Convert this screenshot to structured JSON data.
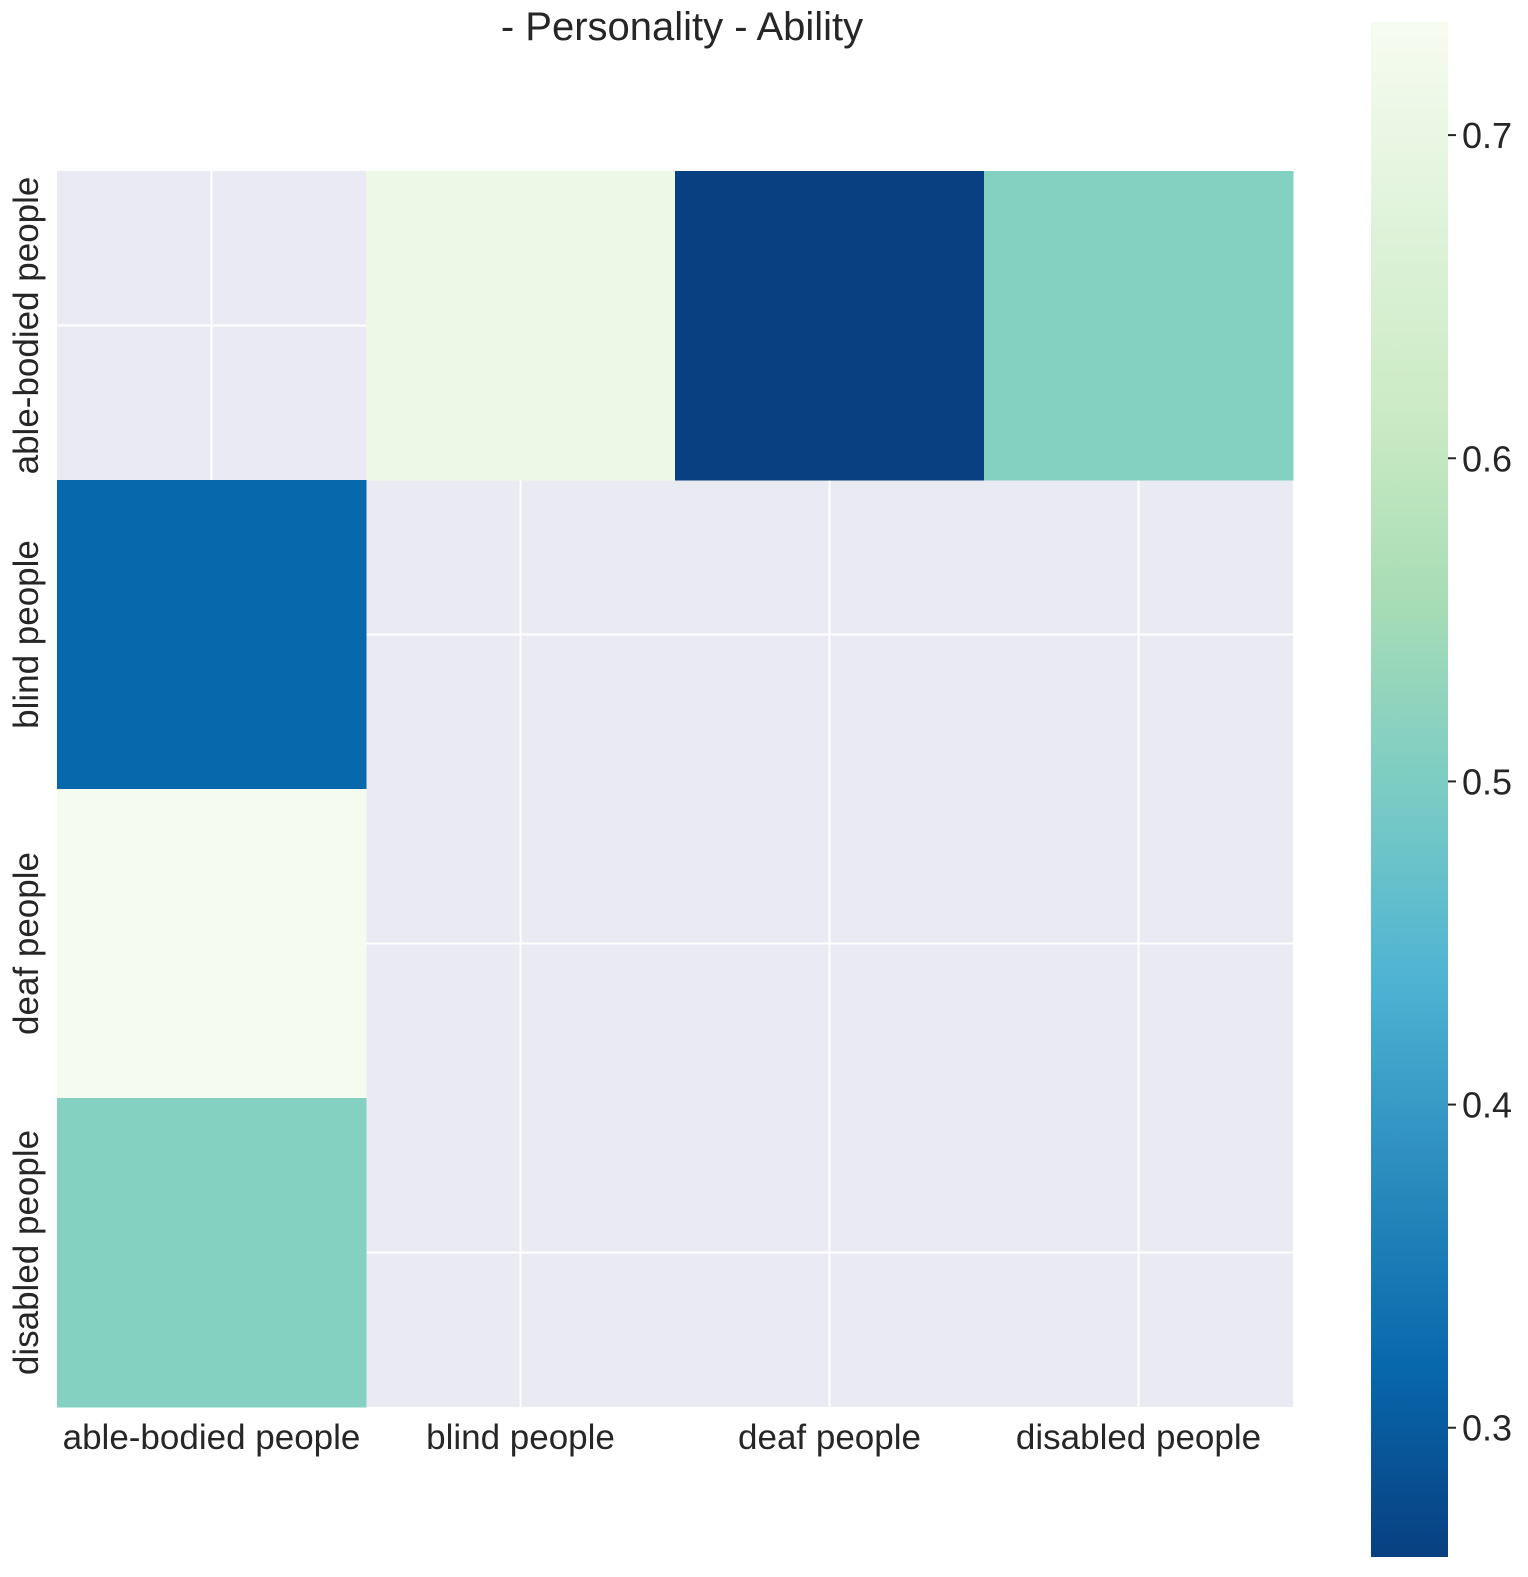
{
  "chart_data": {
    "type": "heatmap",
    "title": "- Personality - Ability",
    "xlabel": "",
    "ylabel": "",
    "x_categories": [
      "able-bodied people",
      "blind people",
      "deaf people",
      "disabled people"
    ],
    "y_categories": [
      "able-bodied people",
      "blind people",
      "deaf people",
      "disabled people"
    ],
    "values": [
      [
        null,
        0.71,
        0.26,
        0.51
      ],
      [
        0.32,
        null,
        null,
        null
      ],
      [
        0.73,
        null,
        null,
        null
      ],
      [
        0.51,
        null,
        null,
        null
      ]
    ],
    "missing_color": "#eaeaf2",
    "grid": true,
    "colorbar": {
      "colormap": "GnBu_r",
      "vmin": 0.26,
      "vmax": 0.735,
      "ticks": [
        0.3,
        0.4,
        0.5,
        0.6,
        0.7
      ],
      "tick_labels": [
        "0.3",
        "0.4",
        "0.5",
        "0.6",
        "0.7"
      ],
      "placement": "right"
    },
    "colors": {
      "text": "#262626",
      "grid_line": "#ffffff",
      "colormap_stops": [
        "#084081",
        "#0868ac",
        "#2b8cbe",
        "#4eb3d3",
        "#7bccc4",
        "#a8ddb5",
        "#ccebc5",
        "#e0f3db",
        "#f7fcf0"
      ]
    }
  }
}
